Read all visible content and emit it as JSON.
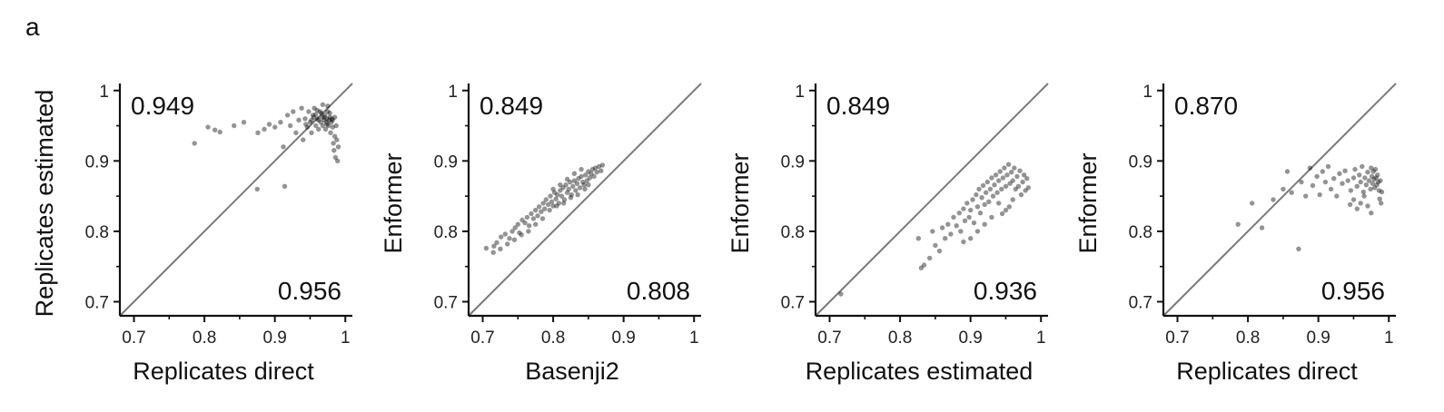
{
  "panel_label": "a",
  "chart_data": [
    {
      "type": "scatter",
      "xlabel": "Replicates direct",
      "ylabel": "Replicates estimated",
      "xlim": [
        0.68,
        1.01
      ],
      "ylim": [
        0.68,
        1.01
      ],
      "xticks": [
        "0.7",
        "0.8",
        "0.9",
        "1"
      ],
      "yticks": [
        "0.7",
        "0.8",
        "0.9",
        "1"
      ],
      "diagonal": true,
      "annotation_top_left": "0.949",
      "annotation_bottom_right": "0.956",
      "points": [
        [
          0.786,
          0.925
        ],
        [
          0.805,
          0.948
        ],
        [
          0.815,
          0.944
        ],
        [
          0.822,
          0.941
        ],
        [
          0.842,
          0.95
        ],
        [
          0.856,
          0.955
        ],
        [
          0.875,
          0.86
        ],
        [
          0.876,
          0.94
        ],
        [
          0.885,
          0.945
        ],
        [
          0.892,
          0.952
        ],
        [
          0.9,
          0.948
        ],
        [
          0.908,
          0.955
        ],
        [
          0.912,
          0.92
        ],
        [
          0.914,
          0.864
        ],
        [
          0.918,
          0.965
        ],
        [
          0.922,
          0.95
        ],
        [
          0.926,
          0.97
        ],
        [
          0.93,
          0.94
        ],
        [
          0.934,
          0.958
        ],
        [
          0.938,
          0.975
        ],
        [
          0.94,
          0.93
        ],
        [
          0.943,
          0.96
        ],
        [
          0.946,
          0.948
        ],
        [
          0.948,
          0.97
        ],
        [
          0.95,
          0.955
        ],
        [
          0.952,
          0.94
        ],
        [
          0.954,
          0.965
        ],
        [
          0.956,
          0.975
        ],
        [
          0.958,
          0.95
        ],
        [
          0.96,
          0.96
        ],
        [
          0.962,
          0.945
        ],
        [
          0.964,
          0.97
        ],
        [
          0.965,
          0.955
        ],
        [
          0.967,
          0.962
        ],
        [
          0.968,
          0.95
        ],
        [
          0.97,
          0.958
        ],
        [
          0.971,
          0.965
        ],
        [
          0.972,
          0.945
        ],
        [
          0.973,
          0.955
        ],
        [
          0.974,
          0.96
        ],
        [
          0.975,
          0.97
        ],
        [
          0.976,
          0.95
        ],
        [
          0.977,
          0.958
        ],
        [
          0.978,
          0.962
        ],
        [
          0.979,
          0.94
        ],
        [
          0.98,
          0.955
        ],
        [
          0.981,
          0.96
        ],
        [
          0.982,
          0.948
        ],
        [
          0.983,
          0.925
        ],
        [
          0.984,
          0.915
        ],
        [
          0.985,
          0.935
        ],
        [
          0.986,
          0.905
        ],
        [
          0.987,
          0.95
        ],
        [
          0.988,
          0.93
        ],
        [
          0.989,
          0.9
        ],
        [
          0.99,
          0.92
        ],
        [
          0.975,
          0.978
        ],
        [
          0.968,
          0.98
        ],
        [
          0.96,
          0.972
        ],
        [
          0.955,
          0.962
        ],
        [
          0.962,
          0.958
        ],
        [
          0.97,
          0.962
        ],
        [
          0.974,
          0.952
        ],
        [
          0.978,
          0.968
        ],
        [
          0.982,
          0.958
        ],
        [
          0.985,
          0.962
        ],
        [
          0.966,
          0.968
        ],
        [
          0.958,
          0.966
        ],
        [
          0.952,
          0.958
        ],
        [
          0.944,
          0.952
        ]
      ]
    },
    {
      "type": "scatter",
      "xlabel": "Basenji2",
      "ylabel": "Enformer",
      "xlim": [
        0.68,
        1.01
      ],
      "ylim": [
        0.68,
        1.01
      ],
      "xticks": [
        "0.7",
        "0.8",
        "0.9",
        "1"
      ],
      "yticks": [
        "0.7",
        "0.8",
        "0.9",
        "1"
      ],
      "diagonal": true,
      "annotation_top_left": "0.849",
      "annotation_bottom_right": "0.808",
      "points": [
        [
          0.705,
          0.776
        ],
        [
          0.716,
          0.779
        ],
        [
          0.72,
          0.784
        ],
        [
          0.726,
          0.792
        ],
        [
          0.732,
          0.796
        ],
        [
          0.738,
          0.79
        ],
        [
          0.742,
          0.8
        ],
        [
          0.746,
          0.805
        ],
        [
          0.75,
          0.81
        ],
        [
          0.752,
          0.798
        ],
        [
          0.756,
          0.816
        ],
        [
          0.76,
          0.812
        ],
        [
          0.763,
          0.82
        ],
        [
          0.766,
          0.808
        ],
        [
          0.769,
          0.825
        ],
        [
          0.772,
          0.818
        ],
        [
          0.775,
          0.83
        ],
        [
          0.778,
          0.822
        ],
        [
          0.78,
          0.835
        ],
        [
          0.783,
          0.828
        ],
        [
          0.786,
          0.84
        ],
        [
          0.788,
          0.832
        ],
        [
          0.79,
          0.845
        ],
        [
          0.793,
          0.838
        ],
        [
          0.796,
          0.85
        ],
        [
          0.798,
          0.842
        ],
        [
          0.8,
          0.836
        ],
        [
          0.802,
          0.855
        ],
        [
          0.804,
          0.846
        ],
        [
          0.806,
          0.852
        ],
        [
          0.808,
          0.84
        ],
        [
          0.81,
          0.858
        ],
        [
          0.812,
          0.85
        ],
        [
          0.814,
          0.862
        ],
        [
          0.816,
          0.845
        ],
        [
          0.818,
          0.866
        ],
        [
          0.82,
          0.855
        ],
        [
          0.822,
          0.86
        ],
        [
          0.824,
          0.87
        ],
        [
          0.826,
          0.852
        ],
        [
          0.828,
          0.864
        ],
        [
          0.83,
          0.872
        ],
        [
          0.832,
          0.858
        ],
        [
          0.834,
          0.868
        ],
        [
          0.836,
          0.875
        ],
        [
          0.838,
          0.862
        ],
        [
          0.84,
          0.878
        ],
        [
          0.842,
          0.87
        ],
        [
          0.844,
          0.866
        ],
        [
          0.846,
          0.88
        ],
        [
          0.848,
          0.872
        ],
        [
          0.85,
          0.885
        ],
        [
          0.852,
          0.876
        ],
        [
          0.854,
          0.882
        ],
        [
          0.856,
          0.888
        ],
        [
          0.858,
          0.878
        ],
        [
          0.86,
          0.89
        ],
        [
          0.862,
          0.884
        ],
        [
          0.865,
          0.892
        ],
        [
          0.868,
          0.886
        ],
        [
          0.87,
          0.894
        ],
        [
          0.795,
          0.83
        ],
        [
          0.805,
          0.836
        ],
        [
          0.815,
          0.84
        ],
        [
          0.825,
          0.848
        ],
        [
          0.835,
          0.852
        ],
        [
          0.845,
          0.86
        ],
        [
          0.81,
          0.866
        ],
        [
          0.82,
          0.874
        ],
        [
          0.84,
          0.888
        ],
        [
          0.775,
          0.81
        ],
        [
          0.785,
          0.818
        ],
        [
          0.765,
          0.8
        ],
        [
          0.755,
          0.795
        ],
        [
          0.745,
          0.788
        ],
        [
          0.735,
          0.782
        ],
        [
          0.725,
          0.775
        ],
        [
          0.715,
          0.77
        ],
        [
          0.8,
          0.86
        ],
        [
          0.83,
          0.882
        ],
        [
          0.85,
          0.866
        ]
      ]
    },
    {
      "type": "scatter",
      "xlabel": "Replicates estimated",
      "ylabel": "Enformer",
      "xlim": [
        0.68,
        1.01
      ],
      "ylim": [
        0.68,
        1.01
      ],
      "xticks": [
        "0.7",
        "0.8",
        "0.9",
        "1"
      ],
      "yticks": [
        "0.7",
        "0.8",
        "0.9",
        "1"
      ],
      "diagonal": true,
      "annotation_top_left": "0.849",
      "annotation_bottom_right": "0.936",
      "points": [
        [
          0.716,
          0.711
        ],
        [
          0.826,
          0.79
        ],
        [
          0.83,
          0.748
        ],
        [
          0.834,
          0.752
        ],
        [
          0.842,
          0.762
        ],
        [
          0.846,
          0.8
        ],
        [
          0.85,
          0.78
        ],
        [
          0.856,
          0.772
        ],
        [
          0.86,
          0.805
        ],
        [
          0.864,
          0.79
        ],
        [
          0.868,
          0.81
        ],
        [
          0.872,
          0.796
        ],
        [
          0.876,
          0.82
        ],
        [
          0.88,
          0.808
        ],
        [
          0.884,
          0.826
        ],
        [
          0.886,
          0.8
        ],
        [
          0.89,
          0.832
        ],
        [
          0.892,
          0.815
        ],
        [
          0.895,
          0.84
        ],
        [
          0.898,
          0.82
        ],
        [
          0.9,
          0.83
        ],
        [
          0.903,
          0.845
        ],
        [
          0.905,
          0.812
        ],
        [
          0.908,
          0.852
        ],
        [
          0.91,
          0.835
        ],
        [
          0.912,
          0.86
        ],
        [
          0.914,
          0.826
        ],
        [
          0.916,
          0.848
        ],
        [
          0.918,
          0.865
        ],
        [
          0.92,
          0.838
        ],
        [
          0.922,
          0.855
        ],
        [
          0.924,
          0.87
        ],
        [
          0.926,
          0.842
        ],
        [
          0.928,
          0.86
        ],
        [
          0.93,
          0.876
        ],
        [
          0.932,
          0.85
        ],
        [
          0.934,
          0.866
        ],
        [
          0.936,
          0.88
        ],
        [
          0.938,
          0.855
        ],
        [
          0.94,
          0.872
        ],
        [
          0.942,
          0.885
        ],
        [
          0.944,
          0.86
        ],
        [
          0.946,
          0.876
        ],
        [
          0.948,
          0.89
        ],
        [
          0.95,
          0.864
        ],
        [
          0.952,
          0.88
        ],
        [
          0.954,
          0.895
        ],
        [
          0.956,
          0.868
        ],
        [
          0.958,
          0.884
        ],
        [
          0.96,
          0.872
        ],
        [
          0.962,
          0.89
        ],
        [
          0.964,
          0.86
        ],
        [
          0.966,
          0.878
        ],
        [
          0.968,
          0.864
        ],
        [
          0.97,
          0.886
        ],
        [
          0.972,
          0.852
        ],
        [
          0.974,
          0.87
        ],
        [
          0.976,
          0.88
        ],
        [
          0.978,
          0.858
        ],
        [
          0.98,
          0.875
        ],
        [
          0.982,
          0.862
        ],
        [
          0.94,
          0.84
        ],
        [
          0.93,
          0.82
        ],
        [
          0.92,
          0.81
        ],
        [
          0.95,
          0.83
        ],
        [
          0.96,
          0.845
        ],
        [
          0.91,
          0.8
        ],
        [
          0.9,
          0.79
        ],
        [
          0.89,
          0.785
        ],
        [
          0.945,
          0.825
        ],
        [
          0.955,
          0.835
        ]
      ]
    },
    {
      "type": "scatter",
      "xlabel": "Replicates direct",
      "ylabel": "Enformer",
      "xlim": [
        0.68,
        1.01
      ],
      "ylim": [
        0.68,
        1.01
      ],
      "xticks": [
        "0.7",
        "0.8",
        "0.9",
        "1"
      ],
      "yticks": [
        "0.7",
        "0.8",
        "0.9",
        "1"
      ],
      "diagonal": true,
      "annotation_top_left": "0.870",
      "annotation_bottom_right": "0.956",
      "points": [
        [
          0.786,
          0.81
        ],
        [
          0.806,
          0.84
        ],
        [
          0.82,
          0.805
        ],
        [
          0.836,
          0.845
        ],
        [
          0.85,
          0.86
        ],
        [
          0.856,
          0.885
        ],
        [
          0.862,
          0.855
        ],
        [
          0.872,
          0.775
        ],
        [
          0.876,
          0.87
        ],
        [
          0.882,
          0.85
        ],
        [
          0.888,
          0.89
        ],
        [
          0.892,
          0.865
        ],
        [
          0.898,
          0.878
        ],
        [
          0.902,
          0.852
        ],
        [
          0.906,
          0.885
        ],
        [
          0.91,
          0.87
        ],
        [
          0.914,
          0.892
        ],
        [
          0.918,
          0.86
        ],
        [
          0.922,
          0.875
        ],
        [
          0.926,
          0.85
        ],
        [
          0.93,
          0.882
        ],
        [
          0.934,
          0.868
        ],
        [
          0.938,
          0.886
        ],
        [
          0.942,
          0.872
        ],
        [
          0.946,
          0.858
        ],
        [
          0.95,
          0.876
        ],
        [
          0.952,
          0.888
        ],
        [
          0.955,
          0.864
        ],
        [
          0.958,
          0.88
        ],
        [
          0.96,
          0.87
        ],
        [
          0.962,
          0.892
        ],
        [
          0.964,
          0.856
        ],
        [
          0.966,
          0.876
        ],
        [
          0.968,
          0.866
        ],
        [
          0.97,
          0.884
        ],
        [
          0.972,
          0.872
        ],
        [
          0.974,
          0.86
        ],
        [
          0.975,
          0.89
        ],
        [
          0.976,
          0.878
        ],
        [
          0.977,
          0.868
        ],
        [
          0.978,
          0.885
        ],
        [
          0.979,
          0.874
        ],
        [
          0.98,
          0.862
        ],
        [
          0.981,
          0.888
        ],
        [
          0.982,
          0.876
        ],
        [
          0.983,
          0.866
        ],
        [
          0.984,
          0.88
        ],
        [
          0.985,
          0.87
        ],
        [
          0.986,
          0.858
        ],
        [
          0.987,
          0.846
        ],
        [
          0.988,
          0.872
        ],
        [
          0.989,
          0.84
        ],
        [
          0.99,
          0.856
        ],
        [
          0.975,
          0.826
        ],
        [
          0.97,
          0.836
        ],
        [
          0.965,
          0.85
        ],
        [
          0.96,
          0.84
        ],
        [
          0.955,
          0.832
        ],
        [
          0.95,
          0.845
        ],
        [
          0.945,
          0.838
        ]
      ]
    }
  ]
}
